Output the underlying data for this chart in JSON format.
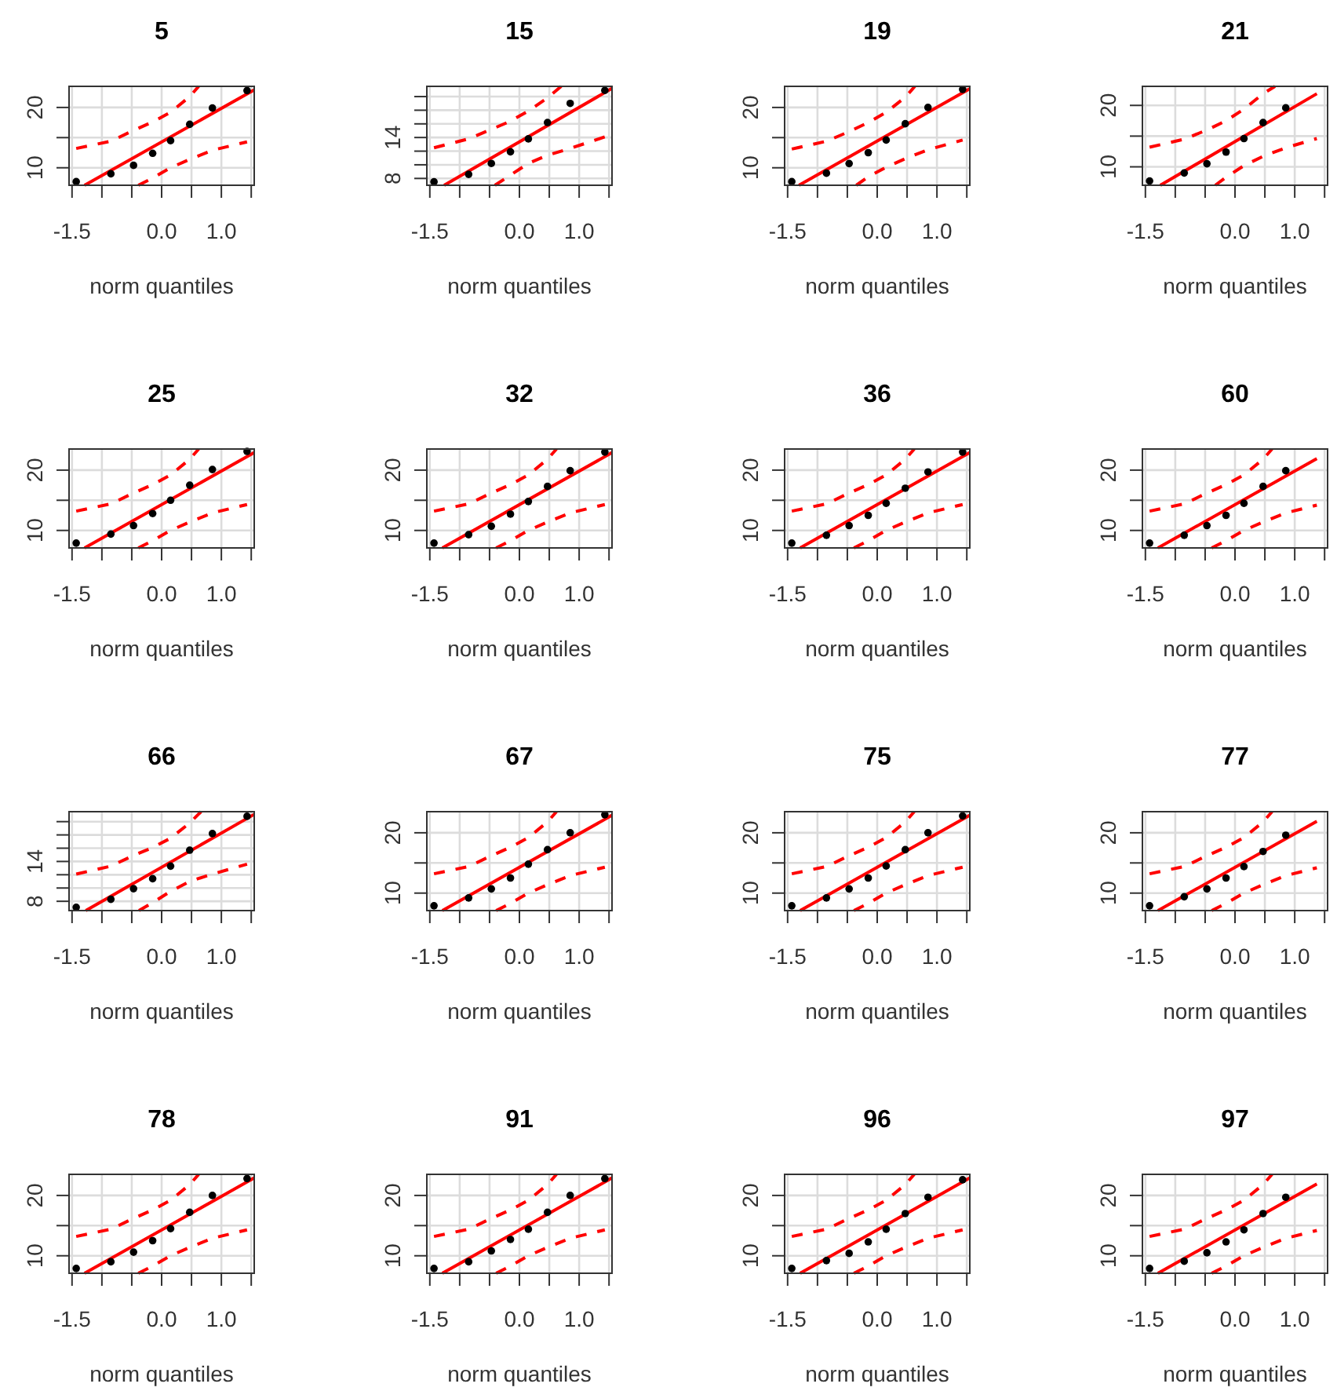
{
  "chart_data": [
    {
      "type": "scatter",
      "title": "5",
      "xlabel": "norm quantiles",
      "xlim": [
        -1.55,
        1.55
      ],
      "xticks": [
        {
          "value": -1.5,
          "label": "-1.5"
        },
        {
          "value": -1,
          "label": null
        },
        {
          "value": -0.5,
          "label": null
        },
        {
          "value": 0,
          "label": "0.0"
        },
        {
          "value": 0.5,
          "label": null
        },
        {
          "value": 1,
          "label": "1.0"
        },
        {
          "value": 1.5,
          "label": null
        }
      ],
      "ylim": [
        7.1,
        23.5
      ],
      "yticks": [
        10,
        {
          "value": 15,
          "label": null
        },
        20
      ],
      "grid": true,
      "series": [
        {
          "type": "line",
          "color": "#ff0000",
          "x": [
            -1.29,
            1.55
          ],
          "values": [
            7.1,
            22.9
          ]
        },
        {
          "type": "line",
          "color": "#ff0000",
          "line_style": "dashed",
          "x": [
            -1.43,
            -0.85,
            -0.47,
            -0.15,
            0.15,
            0.47,
            0.62
          ],
          "values": [
            13.2,
            14.4,
            16.2,
            17.6,
            19.2,
            21.8,
            23.5
          ]
        },
        {
          "type": "line",
          "color": "#ff0000",
          "line_style": "dashed",
          "x": [
            -0.39,
            -0.15,
            0.15,
            0.47,
            0.85,
            1.43
          ],
          "values": [
            7.1,
            8.3,
            10.0,
            11.4,
            12.9,
            14.3
          ]
        },
        {
          "color": "#000000",
          "marker": "circle",
          "x": [
            -1.43,
            -0.85,
            -0.47,
            -0.15,
            0.15,
            0.47,
            0.85,
            1.43
          ],
          "values": [
            7.7,
            9.0,
            10.4,
            12.4,
            14.5,
            17.2,
            19.9,
            22.8
          ]
        }
      ]
    },
    {
      "type": "scatter",
      "title": "15",
      "xlabel": "norm quantiles",
      "xlim": [
        -1.55,
        1.55
      ],
      "xticks": [
        {
          "value": -1.5,
          "label": "-1.5"
        },
        {
          "value": -1,
          "label": null
        },
        {
          "value": -0.5,
          "label": null
        },
        {
          "value": 0,
          "label": "0.0"
        },
        {
          "value": 0.5,
          "label": null
        },
        {
          "value": 1,
          "label": "1.0"
        },
        {
          "value": 1.5,
          "label": null
        }
      ],
      "ylim": [
        7.0,
        21.5
      ],
      "yticks": [
        8,
        {
          "value": 10,
          "label": null
        },
        {
          "value": 12,
          "label": null
        },
        14,
        {
          "value": 16,
          "label": null
        },
        {
          "value": 18,
          "label": null
        },
        {
          "value": 20,
          "label": null
        }
      ],
      "grid": true,
      "series": [
        {
          "type": "line",
          "color": "#ff0000",
          "x": [
            -1.26,
            1.55
          ],
          "values": [
            7.0,
            21.2
          ]
        },
        {
          "type": "line",
          "color": "#ff0000",
          "line_style": "dashed",
          "x": [
            -1.43,
            -0.85,
            -0.47,
            -0.15,
            0.15,
            0.47,
            0.7
          ],
          "values": [
            12.5,
            13.8,
            15.2,
            16.4,
            17.9,
            19.8,
            21.5
          ]
        },
        {
          "type": "line",
          "color": "#ff0000",
          "line_style": "dashed",
          "x": [
            -0.41,
            -0.15,
            0.15,
            0.47,
            0.85,
            1.43
          ],
          "values": [
            7.0,
            8.5,
            10.2,
            11.4,
            12.4,
            14.1
          ]
        },
        {
          "color": "#000000",
          "marker": "circle",
          "x": [
            -1.43,
            -0.85,
            -0.47,
            -0.15,
            0.15,
            0.47,
            0.85,
            1.43
          ],
          "values": [
            7.5,
            8.6,
            10.2,
            11.9,
            13.8,
            16.2,
            19.0,
            20.9
          ]
        }
      ]
    },
    {
      "type": "scatter",
      "title": "19",
      "xlabel": "norm quantiles",
      "xlim": [
        -1.55,
        1.55
      ],
      "xticks": [
        {
          "value": -1.5,
          "label": "-1.5"
        },
        {
          "value": -1,
          "label": null
        },
        {
          "value": -0.5,
          "label": null
        },
        {
          "value": 0,
          "label": "0.0"
        },
        {
          "value": 0.5,
          "label": null
        },
        {
          "value": 1,
          "label": "1.0"
        },
        {
          "value": 1.5,
          "label": null
        }
      ],
      "ylim": [
        7.1,
        23.5
      ],
      "yticks": [
        10,
        {
          "value": 15,
          "label": null
        },
        20
      ],
      "grid": true,
      "series": [
        {
          "type": "line",
          "color": "#ff0000",
          "x": [
            -1.31,
            1.55
          ],
          "values": [
            7.1,
            23.1
          ]
        },
        {
          "type": "line",
          "color": "#ff0000",
          "line_style": "dashed",
          "x": [
            -1.43,
            -0.85,
            -0.47,
            -0.15,
            0.15,
            0.47,
            0.63
          ],
          "values": [
            13.1,
            14.4,
            16.0,
            17.5,
            19.2,
            21.7,
            23.5
          ]
        },
        {
          "type": "line",
          "color": "#ff0000",
          "line_style": "dashed",
          "x": [
            -0.35,
            -0.15,
            0.15,
            0.47,
            0.85,
            1.43
          ],
          "values": [
            7.1,
            8.5,
            10.1,
            11.5,
            13.0,
            14.6
          ]
        },
        {
          "color": "#000000",
          "marker": "circle",
          "x": [
            -1.43,
            -0.85,
            -0.47,
            -0.15,
            0.15,
            0.47,
            0.85,
            1.43
          ],
          "values": [
            7.7,
            9.1,
            10.7,
            12.5,
            14.6,
            17.3,
            20.0,
            23.0
          ]
        }
      ]
    },
    {
      "type": "scatter",
      "title": "21",
      "xlabel": "norm quantiles",
      "xlim": [
        -1.55,
        1.55
      ],
      "xticks": [
        {
          "value": -1.5,
          "label": "-1.5"
        },
        {
          "value": -1,
          "label": null
        },
        {
          "value": -0.5,
          "label": null
        },
        {
          "value": 0,
          "label": "0.0"
        },
        {
          "value": 0.5,
          "label": null
        },
        {
          "value": 1,
          "label": "1.0"
        },
        {
          "value": 1.5,
          "label": null
        }
      ],
      "ylim": [
        7.0,
        23.1
      ],
      "yticks": [
        10,
        {
          "value": 15,
          "label": null
        },
        20
      ],
      "grid": true,
      "series": [
        {
          "type": "line",
          "color": "#ff0000",
          "x": [
            -1.25,
            1.37
          ],
          "values": [
            7.0,
            21.9
          ]
        },
        {
          "type": "line",
          "color": "#ff0000",
          "line_style": "dashed",
          "x": [
            -1.43,
            -0.85,
            -0.47,
            -0.15,
            0.15,
            0.47,
            0.67
          ],
          "values": [
            13.2,
            14.5,
            16.0,
            17.5,
            19.4,
            21.9,
            23.1
          ]
        },
        {
          "type": "line",
          "color": "#ff0000",
          "line_style": "dashed",
          "x": [
            -0.33,
            -0.15,
            0.15,
            0.47,
            0.85,
            1.37
          ],
          "values": [
            7.0,
            8.3,
            10.2,
            11.7,
            13.1,
            14.6
          ]
        },
        {
          "color": "#000000",
          "marker": "circle",
          "x": [
            -1.43,
            -0.85,
            -0.47,
            -0.15,
            0.15,
            0.47,
            0.85
          ],
          "values": [
            7.7,
            9.0,
            10.5,
            12.4,
            14.6,
            17.2,
            19.6
          ]
        }
      ]
    },
    {
      "type": "scatter",
      "title": "25",
      "xlabel": "norm quantiles",
      "xlim": [
        -1.55,
        1.55
      ],
      "xticks": [
        {
          "value": -1.5,
          "label": "-1.5"
        },
        {
          "value": -1,
          "label": null
        },
        {
          "value": -0.5,
          "label": null
        },
        {
          "value": 0,
          "label": "0.0"
        },
        {
          "value": 0.5,
          "label": null
        },
        {
          "value": 1,
          "label": "1.0"
        },
        {
          "value": 1.5,
          "label": null
        }
      ],
      "ylim": [
        7.1,
        23.5
      ],
      "yticks": [
        10,
        {
          "value": 15,
          "label": null
        },
        20
      ],
      "grid": true,
      "series": [
        {
          "type": "line",
          "color": "#ff0000",
          "x": [
            -1.29,
            1.55
          ],
          "values": [
            7.1,
            22.9
          ]
        },
        {
          "type": "line",
          "color": "#ff0000",
          "line_style": "dashed",
          "x": [
            -1.43,
            -0.85,
            -0.47,
            -0.15,
            0.15,
            0.47,
            0.62
          ],
          "values": [
            13.2,
            14.4,
            16.2,
            17.6,
            19.2,
            21.8,
            23.5
          ]
        },
        {
          "type": "line",
          "color": "#ff0000",
          "line_style": "dashed",
          "x": [
            -0.39,
            -0.15,
            0.15,
            0.47,
            0.85,
            1.43
          ],
          "values": [
            7.1,
            8.3,
            10.0,
            11.4,
            12.9,
            14.3
          ]
        },
        {
          "color": "#000000",
          "marker": "circle",
          "x": [
            -1.43,
            -0.85,
            -0.47,
            -0.15,
            0.15,
            0.47,
            0.85,
            1.43
          ],
          "values": [
            7.9,
            9.4,
            10.8,
            12.8,
            15.0,
            17.5,
            20.1,
            23.1
          ]
        }
      ]
    },
    {
      "type": "scatter",
      "title": "32",
      "xlabel": "norm quantiles",
      "xlim": [
        -1.55,
        1.55
      ],
      "xticks": [
        {
          "value": -1.5,
          "label": "-1.5"
        },
        {
          "value": -1,
          "label": null
        },
        {
          "value": -0.5,
          "label": null
        },
        {
          "value": 0,
          "label": "0.0"
        },
        {
          "value": 0.5,
          "label": null
        },
        {
          "value": 1,
          "label": "1.0"
        },
        {
          "value": 1.5,
          "label": null
        }
      ],
      "ylim": [
        7.1,
        23.5
      ],
      "yticks": [
        10,
        {
          "value": 15,
          "label": null
        },
        20
      ],
      "grid": true,
      "series": [
        {
          "type": "line",
          "color": "#ff0000",
          "x": [
            -1.29,
            1.55
          ],
          "values": [
            7.1,
            22.9
          ]
        },
        {
          "type": "line",
          "color": "#ff0000",
          "line_style": "dashed",
          "x": [
            -1.43,
            -0.85,
            -0.47,
            -0.15,
            0.15,
            0.47,
            0.62
          ],
          "values": [
            13.2,
            14.4,
            16.2,
            17.6,
            19.2,
            21.8,
            23.5
          ]
        },
        {
          "type": "line",
          "color": "#ff0000",
          "line_style": "dashed",
          "x": [
            -0.39,
            -0.15,
            0.15,
            0.47,
            0.85,
            1.43
          ],
          "values": [
            7.1,
            8.3,
            10.0,
            11.4,
            12.9,
            14.3
          ]
        },
        {
          "color": "#000000",
          "marker": "circle",
          "x": [
            -1.43,
            -0.85,
            -0.47,
            -0.15,
            0.15,
            0.47,
            0.85,
            1.43
          ],
          "values": [
            7.9,
            9.3,
            10.7,
            12.7,
            14.8,
            17.3,
            19.9,
            23.0
          ]
        }
      ]
    },
    {
      "type": "scatter",
      "title": "36",
      "xlabel": "norm quantiles",
      "xlim": [
        -1.55,
        1.55
      ],
      "xticks": [
        {
          "value": -1.5,
          "label": "-1.5"
        },
        {
          "value": -1,
          "label": null
        },
        {
          "value": -0.5,
          "label": null
        },
        {
          "value": 0,
          "label": "0.0"
        },
        {
          "value": 0.5,
          "label": null
        },
        {
          "value": 1,
          "label": "1.0"
        },
        {
          "value": 1.5,
          "label": null
        }
      ],
      "ylim": [
        7.1,
        23.5
      ],
      "yticks": [
        10,
        {
          "value": 15,
          "label": null
        },
        20
      ],
      "grid": true,
      "series": [
        {
          "type": "line",
          "color": "#ff0000",
          "x": [
            -1.29,
            1.55
          ],
          "values": [
            7.1,
            22.9
          ]
        },
        {
          "type": "line",
          "color": "#ff0000",
          "line_style": "dashed",
          "x": [
            -1.43,
            -0.85,
            -0.47,
            -0.15,
            0.15,
            0.47,
            0.62
          ],
          "values": [
            13.2,
            14.4,
            16.2,
            17.6,
            19.2,
            21.8,
            23.5
          ]
        },
        {
          "type": "line",
          "color": "#ff0000",
          "line_style": "dashed",
          "x": [
            -0.39,
            -0.15,
            0.15,
            0.47,
            0.85,
            1.43
          ],
          "values": [
            7.1,
            8.3,
            10.0,
            11.4,
            12.9,
            14.3
          ]
        },
        {
          "color": "#000000",
          "marker": "circle",
          "x": [
            -1.43,
            -0.85,
            -0.47,
            -0.15,
            0.15,
            0.47,
            0.85,
            1.43
          ],
          "values": [
            7.9,
            9.2,
            10.8,
            12.5,
            14.5,
            17.0,
            19.7,
            23.0
          ]
        }
      ]
    },
    {
      "type": "scatter",
      "title": "60",
      "xlabel": "norm quantiles",
      "xlim": [
        -1.55,
        1.55
      ],
      "xticks": [
        {
          "value": -1.5,
          "label": "-1.5"
        },
        {
          "value": -1,
          "label": null
        },
        {
          "value": -0.5,
          "label": null
        },
        {
          "value": 0,
          "label": "0.0"
        },
        {
          "value": 0.5,
          "label": null
        },
        {
          "value": 1,
          "label": "1.0"
        },
        {
          "value": 1.5,
          "label": null
        }
      ],
      "ylim": [
        7.1,
        23.5
      ],
      "yticks": [
        10,
        {
          "value": 15,
          "label": null
        },
        20
      ],
      "grid": true,
      "series": [
        {
          "type": "line",
          "color": "#ff0000",
          "x": [
            -1.29,
            1.37
          ],
          "values": [
            7.1,
            21.9
          ]
        },
        {
          "type": "line",
          "color": "#ff0000",
          "line_style": "dashed",
          "x": [
            -1.43,
            -0.85,
            -0.47,
            -0.15,
            0.15,
            0.47,
            0.62
          ],
          "values": [
            13.2,
            14.4,
            16.2,
            17.6,
            19.2,
            21.8,
            23.5
          ]
        },
        {
          "type": "line",
          "color": "#ff0000",
          "line_style": "dashed",
          "x": [
            -0.39,
            -0.15,
            0.15,
            0.47,
            0.85,
            1.37
          ],
          "values": [
            7.1,
            8.3,
            10.0,
            11.4,
            12.9,
            14.2
          ]
        },
        {
          "color": "#000000",
          "marker": "circle",
          "x": [
            -1.43,
            -0.85,
            -0.47,
            -0.15,
            0.15,
            0.47,
            0.85
          ],
          "values": [
            7.9,
            9.2,
            10.8,
            12.5,
            14.5,
            17.3,
            19.9
          ]
        }
      ]
    },
    {
      "type": "scatter",
      "title": "66",
      "xlabel": "norm quantiles",
      "xlim": [
        -1.55,
        1.55
      ],
      "xticks": [
        {
          "value": -1.5,
          "label": "-1.5"
        },
        {
          "value": -1,
          "label": null
        },
        {
          "value": -0.5,
          "label": null
        },
        {
          "value": 0,
          "label": "0.0"
        },
        {
          "value": 0.5,
          "label": null
        },
        {
          "value": 1,
          "label": "1.0"
        },
        {
          "value": 1.5,
          "label": null
        }
      ],
      "ylim": [
        6.6,
        21.5
      ],
      "yticks": [
        8,
        {
          "value": 10,
          "label": null
        },
        {
          "value": 12,
          "label": null
        },
        14,
        {
          "value": 16,
          "label": null
        },
        {
          "value": 18,
          "label": null
        },
        {
          "value": 20,
          "label": null
        }
      ],
      "grid": true,
      "series": [
        {
          "type": "line",
          "color": "#ff0000",
          "x": [
            -1.27,
            1.55
          ],
          "values": [
            6.6,
            21.1
          ]
        },
        {
          "type": "line",
          "color": "#ff0000",
          "line_style": "dashed",
          "x": [
            -1.43,
            -0.85,
            -0.47,
            -0.15,
            0.15,
            0.47,
            0.66
          ],
          "values": [
            12.1,
            13.3,
            14.9,
            16.1,
            17.5,
            19.8,
            21.5
          ]
        },
        {
          "type": "line",
          "color": "#ff0000",
          "line_style": "dashed",
          "x": [
            -0.38,
            -0.15,
            0.15,
            0.47,
            0.85,
            1.43
          ],
          "values": [
            6.6,
            7.8,
            9.5,
            11.0,
            12.1,
            13.6
          ]
        },
        {
          "color": "#000000",
          "marker": "circle",
          "x": [
            -1.43,
            -0.85,
            -0.47,
            -0.15,
            0.15,
            0.47,
            0.85,
            1.43
          ],
          "values": [
            7.1,
            8.3,
            9.9,
            11.4,
            13.3,
            15.7,
            18.2,
            20.8
          ]
        }
      ]
    },
    {
      "type": "scatter",
      "title": "67",
      "xlabel": "norm quantiles",
      "xlim": [
        -1.55,
        1.55
      ],
      "xticks": [
        {
          "value": -1.5,
          "label": "-1.5"
        },
        {
          "value": -1,
          "label": null
        },
        {
          "value": -0.5,
          "label": null
        },
        {
          "value": 0,
          "label": "0.0"
        },
        {
          "value": 0.5,
          "label": null
        },
        {
          "value": 1,
          "label": "1.0"
        },
        {
          "value": 1.5,
          "label": null
        }
      ],
      "ylim": [
        7.1,
        23.5
      ],
      "yticks": [
        10,
        {
          "value": 15,
          "label": null
        },
        20
      ],
      "grid": true,
      "series": [
        {
          "type": "line",
          "color": "#ff0000",
          "x": [
            -1.29,
            1.55
          ],
          "values": [
            7.1,
            22.9
          ]
        },
        {
          "type": "line",
          "color": "#ff0000",
          "line_style": "dashed",
          "x": [
            -1.43,
            -0.85,
            -0.47,
            -0.15,
            0.15,
            0.47,
            0.62
          ],
          "values": [
            13.2,
            14.4,
            16.2,
            17.6,
            19.2,
            21.8,
            23.5
          ]
        },
        {
          "type": "line",
          "color": "#ff0000",
          "line_style": "dashed",
          "x": [
            -0.39,
            -0.15,
            0.15,
            0.47,
            0.85,
            1.43
          ],
          "values": [
            7.1,
            8.3,
            10.0,
            11.4,
            12.9,
            14.3
          ]
        },
        {
          "color": "#000000",
          "marker": "circle",
          "x": [
            -1.43,
            -0.85,
            -0.47,
            -0.15,
            0.15,
            0.47,
            0.85,
            1.43
          ],
          "values": [
            7.9,
            9.2,
            10.7,
            12.5,
            14.8,
            17.2,
            20.0,
            23.0
          ]
        }
      ]
    },
    {
      "type": "scatter",
      "title": "75",
      "xlabel": "norm quantiles",
      "xlim": [
        -1.55,
        1.55
      ],
      "xticks": [
        {
          "value": -1.5,
          "label": "-1.5"
        },
        {
          "value": -1,
          "label": null
        },
        {
          "value": -0.5,
          "label": null
        },
        {
          "value": 0,
          "label": "0.0"
        },
        {
          "value": 0.5,
          "label": null
        },
        {
          "value": 1,
          "label": "1.0"
        },
        {
          "value": 1.5,
          "label": null
        }
      ],
      "ylim": [
        7.1,
        23.5
      ],
      "yticks": [
        10,
        {
          "value": 15,
          "label": null
        },
        20
      ],
      "grid": true,
      "series": [
        {
          "type": "line",
          "color": "#ff0000",
          "x": [
            -1.29,
            1.55
          ],
          "values": [
            7.1,
            22.9
          ]
        },
        {
          "type": "line",
          "color": "#ff0000",
          "line_style": "dashed",
          "x": [
            -1.43,
            -0.85,
            -0.47,
            -0.15,
            0.15,
            0.47,
            0.62
          ],
          "values": [
            13.2,
            14.4,
            16.2,
            17.6,
            19.2,
            21.8,
            23.5
          ]
        },
        {
          "type": "line",
          "color": "#ff0000",
          "line_style": "dashed",
          "x": [
            -0.39,
            -0.15,
            0.15,
            0.47,
            0.85,
            1.43
          ],
          "values": [
            7.1,
            8.3,
            10.0,
            11.4,
            12.9,
            14.3
          ]
        },
        {
          "color": "#000000",
          "marker": "circle",
          "x": [
            -1.43,
            -0.85,
            -0.47,
            -0.15,
            0.15,
            0.47,
            0.85,
            1.43
          ],
          "values": [
            7.9,
            9.2,
            10.7,
            12.5,
            14.5,
            17.2,
            20.0,
            22.8
          ]
        }
      ]
    },
    {
      "type": "scatter",
      "title": "77",
      "xlabel": "norm quantiles",
      "xlim": [
        -1.55,
        1.55
      ],
      "xticks": [
        {
          "value": -1.5,
          "label": "-1.5"
        },
        {
          "value": -1,
          "label": null
        },
        {
          "value": -0.5,
          "label": null
        },
        {
          "value": 0,
          "label": "0.0"
        },
        {
          "value": 0.5,
          "label": null
        },
        {
          "value": 1,
          "label": "1.0"
        },
        {
          "value": 1.5,
          "label": null
        }
      ],
      "ylim": [
        7.1,
        23.5
      ],
      "yticks": [
        10,
        {
          "value": 15,
          "label": null
        },
        20
      ],
      "grid": true,
      "series": [
        {
          "type": "line",
          "color": "#ff0000",
          "x": [
            -1.29,
            1.37
          ],
          "values": [
            7.1,
            21.9
          ]
        },
        {
          "type": "line",
          "color": "#ff0000",
          "line_style": "dashed",
          "x": [
            -1.43,
            -0.85,
            -0.47,
            -0.15,
            0.15,
            0.47,
            0.62
          ],
          "values": [
            13.2,
            14.4,
            16.2,
            17.6,
            19.2,
            21.8,
            23.5
          ]
        },
        {
          "type": "line",
          "color": "#ff0000",
          "line_style": "dashed",
          "x": [
            -0.39,
            -0.15,
            0.15,
            0.47,
            0.85,
            1.37
          ],
          "values": [
            7.1,
            8.3,
            10.0,
            11.4,
            12.9,
            14.2
          ]
        },
        {
          "color": "#000000",
          "marker": "circle",
          "x": [
            -1.43,
            -0.85,
            -0.47,
            -0.15,
            0.15,
            0.47,
            0.85
          ],
          "values": [
            7.9,
            9.4,
            10.7,
            12.5,
            14.4,
            16.9,
            19.6
          ]
        }
      ]
    },
    {
      "type": "scatter",
      "title": "78",
      "xlabel": "norm quantiles",
      "xlim": [
        -1.55,
        1.55
      ],
      "xticks": [
        {
          "value": -1.5,
          "label": "-1.5"
        },
        {
          "value": -1,
          "label": null
        },
        {
          "value": -0.5,
          "label": null
        },
        {
          "value": 0,
          "label": "0.0"
        },
        {
          "value": 0.5,
          "label": null
        },
        {
          "value": 1,
          "label": "1.0"
        },
        {
          "value": 1.5,
          "label": null
        }
      ],
      "ylim": [
        7.1,
        23.5
      ],
      "yticks": [
        10,
        {
          "value": 15,
          "label": null
        },
        20
      ],
      "grid": true,
      "series": [
        {
          "type": "line",
          "color": "#ff0000",
          "x": [
            -1.29,
            1.55
          ],
          "values": [
            7.1,
            22.9
          ]
        },
        {
          "type": "line",
          "color": "#ff0000",
          "line_style": "dashed",
          "x": [
            -1.43,
            -0.85,
            -0.47,
            -0.15,
            0.15,
            0.47,
            0.62
          ],
          "values": [
            13.2,
            14.4,
            16.2,
            17.6,
            19.2,
            21.8,
            23.5
          ]
        },
        {
          "type": "line",
          "color": "#ff0000",
          "line_style": "dashed",
          "x": [
            -0.39,
            -0.15,
            0.15,
            0.47,
            0.85,
            1.43
          ],
          "values": [
            7.1,
            8.3,
            10.0,
            11.4,
            12.9,
            14.3
          ]
        },
        {
          "color": "#000000",
          "marker": "circle",
          "x": [
            -1.43,
            -0.85,
            -0.47,
            -0.15,
            0.15,
            0.47,
            0.85,
            1.43
          ],
          "values": [
            7.9,
            9.0,
            10.6,
            12.5,
            14.5,
            17.2,
            20.0,
            22.8
          ]
        }
      ]
    },
    {
      "type": "scatter",
      "title": "91",
      "xlabel": "norm quantiles",
      "xlim": [
        -1.55,
        1.55
      ],
      "xticks": [
        {
          "value": -1.5,
          "label": "-1.5"
        },
        {
          "value": -1,
          "label": null
        },
        {
          "value": -0.5,
          "label": null
        },
        {
          "value": 0,
          "label": "0.0"
        },
        {
          "value": 0.5,
          "label": null
        },
        {
          "value": 1,
          "label": "1.0"
        },
        {
          "value": 1.5,
          "label": null
        }
      ],
      "ylim": [
        7.1,
        23.5
      ],
      "yticks": [
        10,
        {
          "value": 15,
          "label": null
        },
        20
      ],
      "grid": true,
      "series": [
        {
          "type": "line",
          "color": "#ff0000",
          "x": [
            -1.29,
            1.55
          ],
          "values": [
            7.1,
            22.9
          ]
        },
        {
          "type": "line",
          "color": "#ff0000",
          "line_style": "dashed",
          "x": [
            -1.43,
            -0.85,
            -0.47,
            -0.15,
            0.15,
            0.47,
            0.62
          ],
          "values": [
            13.2,
            14.4,
            16.2,
            17.6,
            19.2,
            21.8,
            23.5
          ]
        },
        {
          "type": "line",
          "color": "#ff0000",
          "line_style": "dashed",
          "x": [
            -0.39,
            -0.15,
            0.15,
            0.47,
            0.85,
            1.43
          ],
          "values": [
            7.1,
            8.3,
            10.0,
            11.4,
            12.9,
            14.3
          ]
        },
        {
          "color": "#000000",
          "marker": "circle",
          "x": [
            -1.43,
            -0.85,
            -0.47,
            -0.15,
            0.15,
            0.47,
            0.85,
            1.43
          ],
          "values": [
            7.9,
            9.0,
            10.8,
            12.7,
            14.4,
            17.2,
            20.0,
            22.8
          ]
        }
      ]
    },
    {
      "type": "scatter",
      "title": "96",
      "xlabel": "norm quantiles",
      "xlim": [
        -1.55,
        1.55
      ],
      "xticks": [
        {
          "value": -1.5,
          "label": "-1.5"
        },
        {
          "value": -1,
          "label": null
        },
        {
          "value": -0.5,
          "label": null
        },
        {
          "value": 0,
          "label": "0.0"
        },
        {
          "value": 0.5,
          "label": null
        },
        {
          "value": 1,
          "label": "1.0"
        },
        {
          "value": 1.5,
          "label": null
        }
      ],
      "ylim": [
        7.1,
        23.5
      ],
      "yticks": [
        10,
        {
          "value": 15,
          "label": null
        },
        20
      ],
      "grid": true,
      "series": [
        {
          "type": "line",
          "color": "#ff0000",
          "x": [
            -1.29,
            1.55
          ],
          "values": [
            7.1,
            22.9
          ]
        },
        {
          "type": "line",
          "color": "#ff0000",
          "line_style": "dashed",
          "x": [
            -1.43,
            -0.85,
            -0.47,
            -0.15,
            0.15,
            0.47,
            0.62
          ],
          "values": [
            13.2,
            14.4,
            16.2,
            17.6,
            19.2,
            21.8,
            23.5
          ]
        },
        {
          "type": "line",
          "color": "#ff0000",
          "line_style": "dashed",
          "x": [
            -0.39,
            -0.15,
            0.15,
            0.47,
            0.85,
            1.43
          ],
          "values": [
            7.1,
            8.3,
            10.0,
            11.4,
            12.9,
            14.3
          ]
        },
        {
          "color": "#000000",
          "marker": "circle",
          "x": [
            -1.43,
            -0.85,
            -0.47,
            -0.15,
            0.15,
            0.47,
            0.85,
            1.43
          ],
          "values": [
            7.9,
            9.2,
            10.4,
            12.3,
            14.4,
            17.0,
            19.7,
            22.6
          ]
        }
      ]
    },
    {
      "type": "scatter",
      "title": "97",
      "xlabel": "norm quantiles",
      "xlim": [
        -1.55,
        1.55
      ],
      "xticks": [
        {
          "value": -1.5,
          "label": "-1.5"
        },
        {
          "value": -1,
          "label": null
        },
        {
          "value": -0.5,
          "label": null
        },
        {
          "value": 0,
          "label": "0.0"
        },
        {
          "value": 0.5,
          "label": null
        },
        {
          "value": 1,
          "label": "1.0"
        },
        {
          "value": 1.5,
          "label": null
        }
      ],
      "ylim": [
        7.1,
        23.5
      ],
      "yticks": [
        10,
        {
          "value": 15,
          "label": null
        },
        20
      ],
      "grid": true,
      "series": [
        {
          "type": "line",
          "color": "#ff0000",
          "x": [
            -1.29,
            1.37
          ],
          "values": [
            7.1,
            21.9
          ]
        },
        {
          "type": "line",
          "color": "#ff0000",
          "line_style": "dashed",
          "x": [
            -1.43,
            -0.85,
            -0.47,
            -0.15,
            0.15,
            0.47,
            0.62
          ],
          "values": [
            13.2,
            14.4,
            16.2,
            17.6,
            19.2,
            21.8,
            23.5
          ]
        },
        {
          "type": "line",
          "color": "#ff0000",
          "line_style": "dashed",
          "x": [
            -0.39,
            -0.15,
            0.15,
            0.47,
            0.85,
            1.37
          ],
          "values": [
            7.1,
            8.3,
            10.0,
            11.4,
            12.9,
            14.2
          ]
        },
        {
          "color": "#000000",
          "marker": "circle",
          "x": [
            -1.43,
            -0.85,
            -0.47,
            -0.15,
            0.15,
            0.47,
            0.85
          ],
          "values": [
            7.9,
            9.1,
            10.5,
            12.3,
            14.3,
            17.0,
            19.7
          ]
        }
      ]
    }
  ]
}
